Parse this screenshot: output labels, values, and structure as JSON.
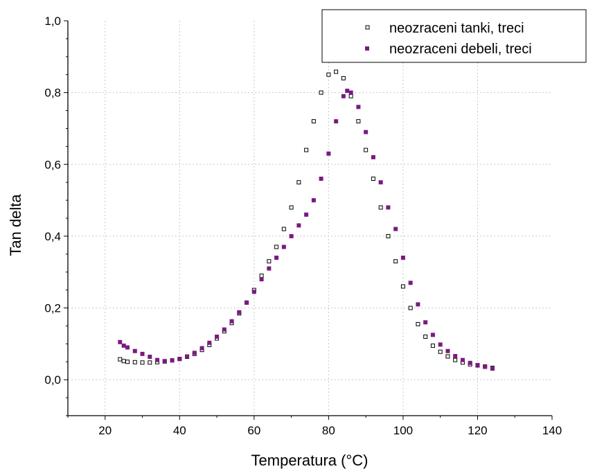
{
  "chart_data": {
    "type": "scatter",
    "xlabel": "Temperatura (°C)",
    "ylabel": "Tan delta",
    "xlim": [
      10,
      140
    ],
    "ylim": [
      -0.1,
      1.0
    ],
    "x_ticks": [
      "20",
      "40",
      "60",
      "80",
      "100",
      "120",
      "140"
    ],
    "y_ticks": [
      "0,0",
      "0,2",
      "0,4",
      "0,6",
      "0,8",
      "1,0"
    ],
    "grid": true,
    "legend_position": "top-right",
    "series": [
      {
        "name": "neozraceni tanki, treci",
        "marker": "open-square",
        "color": "#000000",
        "points": [
          [
            24,
            0.057
          ],
          [
            25,
            0.052
          ],
          [
            26,
            0.05
          ],
          [
            28,
            0.049
          ],
          [
            30,
            0.048
          ],
          [
            32,
            0.048
          ],
          [
            34,
            0.049
          ],
          [
            36,
            0.051
          ],
          [
            38,
            0.054
          ],
          [
            40,
            0.058
          ],
          [
            42,
            0.064
          ],
          [
            44,
            0.072
          ],
          [
            46,
            0.083
          ],
          [
            48,
            0.097
          ],
          [
            50,
            0.115
          ],
          [
            52,
            0.135
          ],
          [
            54,
            0.158
          ],
          [
            56,
            0.185
          ],
          [
            58,
            0.215
          ],
          [
            60,
            0.25
          ],
          [
            62,
            0.29
          ],
          [
            64,
            0.33
          ],
          [
            66,
            0.37
          ],
          [
            68,
            0.42
          ],
          [
            70,
            0.48
          ],
          [
            72,
            0.55
          ],
          [
            74,
            0.64
          ],
          [
            76,
            0.72
          ],
          [
            78,
            0.8
          ],
          [
            80,
            0.85
          ],
          [
            82,
            0.858
          ],
          [
            84,
            0.84
          ],
          [
            86,
            0.79
          ],
          [
            88,
            0.72
          ],
          [
            90,
            0.64
          ],
          [
            92,
            0.56
          ],
          [
            94,
            0.48
          ],
          [
            96,
            0.4
          ],
          [
            98,
            0.33
          ],
          [
            100,
            0.26
          ],
          [
            102,
            0.2
          ],
          [
            104,
            0.155
          ],
          [
            106,
            0.12
          ],
          [
            108,
            0.095
          ],
          [
            110,
            0.078
          ],
          [
            112,
            0.065
          ],
          [
            114,
            0.055
          ],
          [
            116,
            0.048
          ],
          [
            118,
            0.043
          ],
          [
            120,
            0.04
          ],
          [
            122,
            0.037
          ],
          [
            124,
            0.033
          ]
        ]
      },
      {
        "name": "neozraceni debeli, treci",
        "marker": "filled-square",
        "color": "#7b1a80",
        "points": [
          [
            24,
            0.105
          ],
          [
            25,
            0.095
          ],
          [
            26,
            0.09
          ],
          [
            28,
            0.08
          ],
          [
            30,
            0.072
          ],
          [
            32,
            0.064
          ],
          [
            34,
            0.055
          ],
          [
            36,
            0.052
          ],
          [
            38,
            0.054
          ],
          [
            40,
            0.058
          ],
          [
            42,
            0.065
          ],
          [
            44,
            0.075
          ],
          [
            46,
            0.088
          ],
          [
            48,
            0.103
          ],
          [
            50,
            0.12
          ],
          [
            52,
            0.14
          ],
          [
            54,
            0.163
          ],
          [
            56,
            0.188
          ],
          [
            58,
            0.215
          ],
          [
            60,
            0.245
          ],
          [
            62,
            0.28
          ],
          [
            64,
            0.31
          ],
          [
            66,
            0.34
          ],
          [
            68,
            0.37
          ],
          [
            70,
            0.4
          ],
          [
            72,
            0.43
          ],
          [
            74,
            0.46
          ],
          [
            76,
            0.5
          ],
          [
            78,
            0.56
          ],
          [
            80,
            0.63
          ],
          [
            82,
            0.72
          ],
          [
            84,
            0.79
          ],
          [
            85,
            0.805
          ],
          [
            86,
            0.8
          ],
          [
            88,
            0.76
          ],
          [
            90,
            0.69
          ],
          [
            92,
            0.62
          ],
          [
            94,
            0.55
          ],
          [
            96,
            0.48
          ],
          [
            98,
            0.42
          ],
          [
            100,
            0.34
          ],
          [
            102,
            0.27
          ],
          [
            104,
            0.21
          ],
          [
            106,
            0.16
          ],
          [
            108,
            0.125
          ],
          [
            110,
            0.098
          ],
          [
            112,
            0.08
          ],
          [
            114,
            0.066
          ],
          [
            116,
            0.055
          ],
          [
            118,
            0.047
          ],
          [
            120,
            0.041
          ],
          [
            122,
            0.036
          ],
          [
            124,
            0.031
          ]
        ]
      }
    ]
  }
}
